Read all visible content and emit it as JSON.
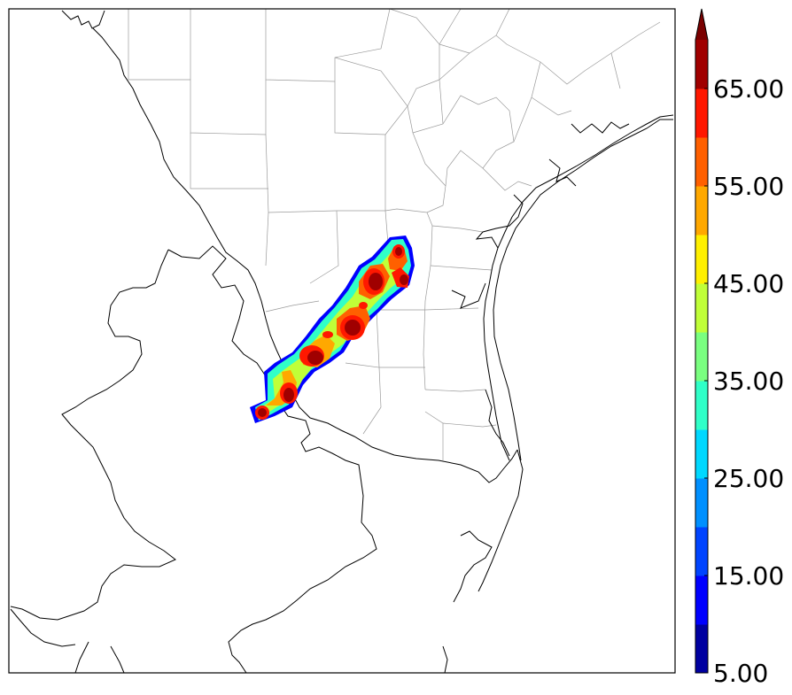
{
  "map": {
    "type": "radar-reflectivity-map",
    "colors": {
      "background": "#ffffff",
      "county_borders": "#999999",
      "coast_and_state": "#000000"
    }
  },
  "colorbar": {
    "tick_labels": [
      "5.00",
      "15.00",
      "25.00",
      "35.00",
      "45.00",
      "55.00",
      "65.00"
    ],
    "min": 5,
    "max": 70,
    "step": 5,
    "extend": "max",
    "bins": [
      {
        "from": 5,
        "to": 10,
        "color": "#0000a0"
      },
      {
        "from": 10,
        "to": 15,
        "color": "#0000ff"
      },
      {
        "from": 15,
        "to": 20,
        "color": "#0044ff"
      },
      {
        "from": 20,
        "to": 25,
        "color": "#0090ff"
      },
      {
        "from": 25,
        "to": 30,
        "color": "#00d8ff"
      },
      {
        "from": 30,
        "to": 35,
        "color": "#30ffc8"
      },
      {
        "from": 35,
        "to": 40,
        "color": "#7aff80"
      },
      {
        "from": 40,
        "to": 45,
        "color": "#c0ff38"
      },
      {
        "from": 45,
        "to": 50,
        "color": "#fff000"
      },
      {
        "from": 50,
        "to": 55,
        "color": "#ffa800"
      },
      {
        "from": 55,
        "to": 60,
        "color": "#ff6000"
      },
      {
        "from": 60,
        "to": 65,
        "color": "#ff1800"
      },
      {
        "from": 65,
        "to": 70,
        "color": "#a00000"
      }
    ],
    "over_color": "#7a0000"
  }
}
